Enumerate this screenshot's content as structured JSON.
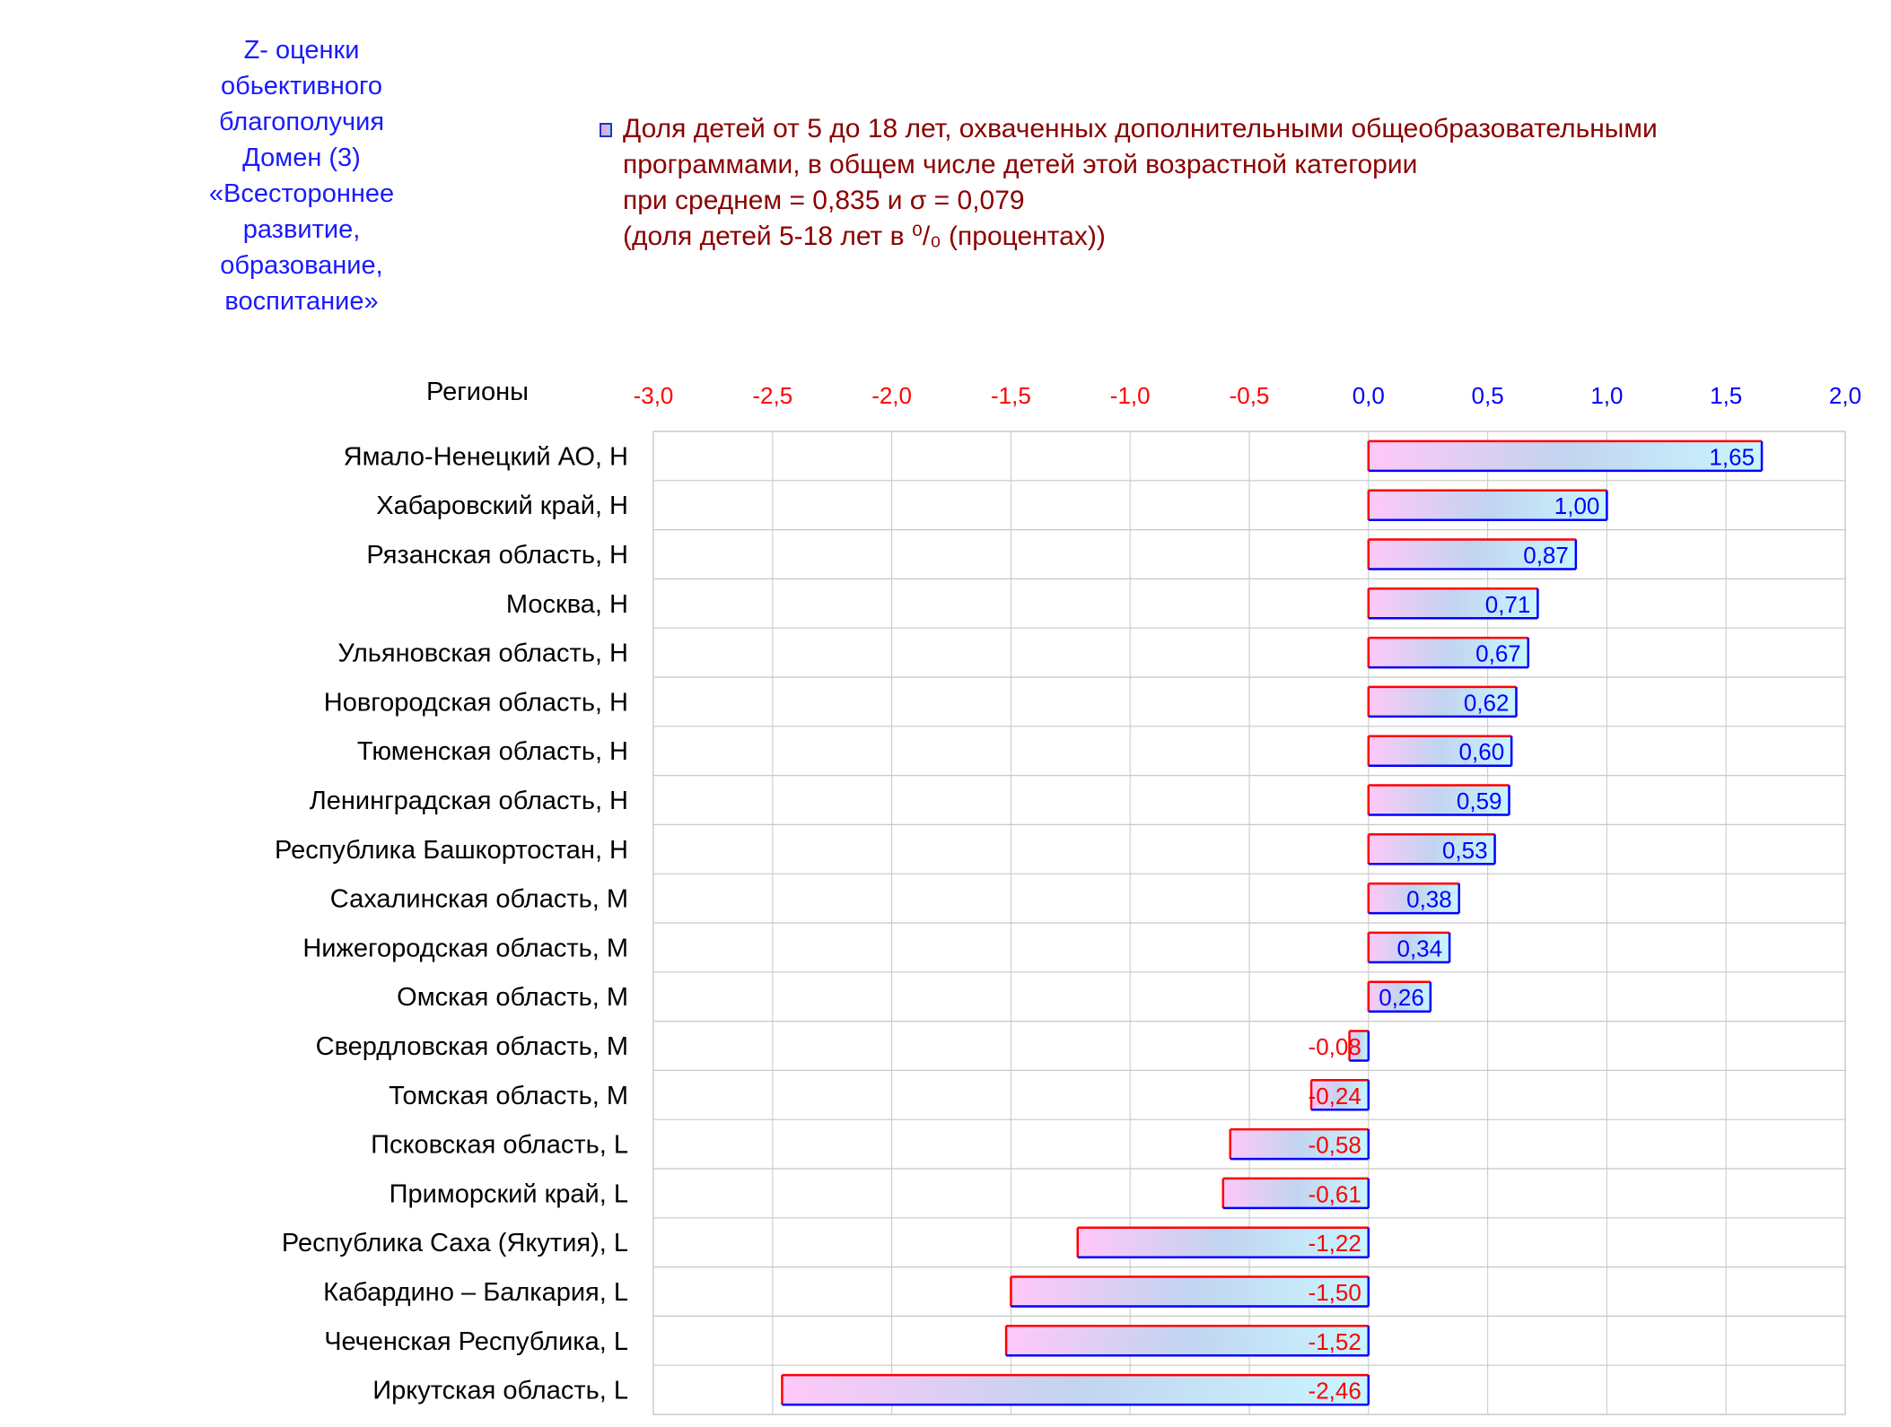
{
  "side_title": {
    "lines": [
      "Z- оценки",
      "обьективного",
      "благополучия",
      "Домен (3)",
      "«Всестороннее",
      "развитие,",
      "образование,",
      "воспитание»"
    ]
  },
  "legend": {
    "lines": [
      "Доля детей от 5 до 18 лет, охваченных дополнительными общеобразовательными",
      "программами, в общем числе детей этой возрастной категории",
      "при среднем = 0,835  и σ = 0,079",
      "(доля детей 5-18 лет в ⁰/₀ (процентах))"
    ]
  },
  "colors": {
    "negative": "#ff0000",
    "positive": "#0000ff",
    "bar_left": "#ffc8f8",
    "bar_mid": "#c2d4f0",
    "bar_right": "#c8f6ff",
    "grid": "#d0d0d0",
    "row_border": "#c8c8c8"
  },
  "chart_data": {
    "type": "bar",
    "orientation": "horizontal",
    "ylabel": "Регионы",
    "xlim": [
      -3.0,
      2.0
    ],
    "tick_values": [
      -3.0,
      -2.5,
      -2.0,
      -1.5,
      -1.0,
      -0.5,
      0.0,
      0.5,
      1.0,
      1.5,
      2.0
    ],
    "tick_labels": [
      "-3,0",
      "-2,5",
      "-2,0",
      "-1,5",
      "-1,0",
      "-0,5",
      "0,0",
      "0,5",
      "1,0",
      "1,5",
      "2,0"
    ],
    "categories": [
      "Ямало-Ненецкий АО,  Н",
      "Хабаровский край,  Н",
      "Рязанская область,  Н",
      "Москва,  Н",
      "Ульяновская область,  Н",
      "Новгородская область,  Н",
      "Тюменская область,  Н",
      "Ленинградская область,  Н",
      "Республика Башкортостан,  Н",
      "Сахалинская область,  М",
      "Нижегородская область,  М",
      "Омская область,  М",
      "Свердловская область,  М",
      "Томская область,  М",
      "Псковская область,  L",
      "Приморский край,  L",
      "Республика Саха (Якутия),  L",
      "Кабардино – Балкария,  L",
      "Чеченская Республика,  L",
      "Иркутская область,  L"
    ],
    "values": [
      1.65,
      1.0,
      0.87,
      0.71,
      0.67,
      0.62,
      0.6,
      0.59,
      0.53,
      0.38,
      0.34,
      0.26,
      -0.08,
      -0.24,
      -0.58,
      -0.61,
      -1.22,
      -1.5,
      -1.52,
      -2.46
    ],
    "value_labels": [
      "1,65",
      "1,00",
      "0,87",
      "0,71",
      "0,67",
      "0,62",
      "0,60",
      "0,59",
      "0,53",
      "0,38",
      "0,34",
      "0,26",
      "-0,08",
      "-0,24",
      "-0,58",
      "-0,61",
      "-1,22",
      "-1,50",
      "-1,52",
      "-2,46"
    ],
    "grid": true
  }
}
